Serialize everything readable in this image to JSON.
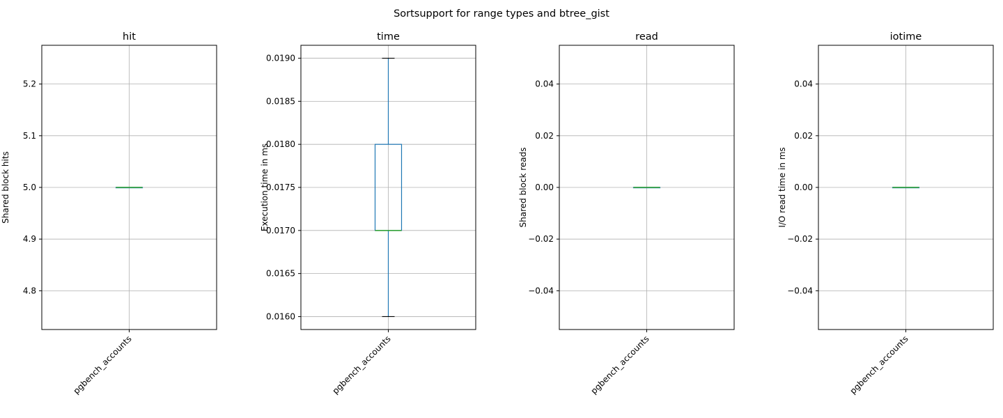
{
  "chart_data": {
    "type": "box",
    "suptitle": "Sortsupport for range types and btree_gist",
    "colors": {
      "box": "#1f77b4",
      "median": "#2ca02c",
      "whisker": "#1f77b4",
      "cap": "#000000",
      "grid": "#b0b0b0"
    },
    "grid": true,
    "panels": [
      {
        "title": "hit",
        "ylabel": "Shared block hits",
        "category": "pgbench_accounts",
        "ylim": [
          4.725,
          5.275
        ],
        "yticks": [
          4.8,
          4.9,
          5.0,
          5.1,
          5.2
        ],
        "ytick_labels": [
          "4.8",
          "4.9",
          "5.0",
          "5.1",
          "5.2"
        ],
        "whisker_low": 5.0,
        "q1": 5.0,
        "median": 5.0,
        "q3": 5.0,
        "whisker_high": 5.0
      },
      {
        "title": "time",
        "ylabel": "Execution time in ms",
        "category": "pgbench_accounts",
        "ylim": [
          0.01585,
          0.01915
        ],
        "yticks": [
          0.016,
          0.0165,
          0.017,
          0.0175,
          0.018,
          0.0185,
          0.019
        ],
        "ytick_labels": [
          "0.0160",
          "0.0165",
          "0.0170",
          "0.0175",
          "0.0180",
          "0.0185",
          "0.0190"
        ],
        "whisker_low": 0.016,
        "q1": 0.017,
        "median": 0.017,
        "q3": 0.018,
        "whisker_high": 0.019
      },
      {
        "title": "read",
        "ylabel": "Shared block reads",
        "category": "pgbench_accounts",
        "ylim": [
          -0.055,
          0.055
        ],
        "yticks": [
          -0.04,
          -0.02,
          0.0,
          0.02,
          0.04
        ],
        "ytick_labels": [
          "−0.04",
          "−0.02",
          "0.00",
          "0.02",
          "0.04"
        ],
        "whisker_low": 0.0,
        "q1": 0.0,
        "median": 0.0,
        "q3": 0.0,
        "whisker_high": 0.0
      },
      {
        "title": "iotime",
        "ylabel": "I/O read time in ms",
        "category": "pgbench_accounts",
        "ylim": [
          -0.055,
          0.055
        ],
        "yticks": [
          -0.04,
          -0.02,
          0.0,
          0.02,
          0.04
        ],
        "ytick_labels": [
          "−0.04",
          "−0.02",
          "0.00",
          "0.02",
          "0.04"
        ],
        "whisker_low": 0.0,
        "q1": 0.0,
        "median": 0.0,
        "q3": 0.0,
        "whisker_high": 0.0
      }
    ]
  }
}
